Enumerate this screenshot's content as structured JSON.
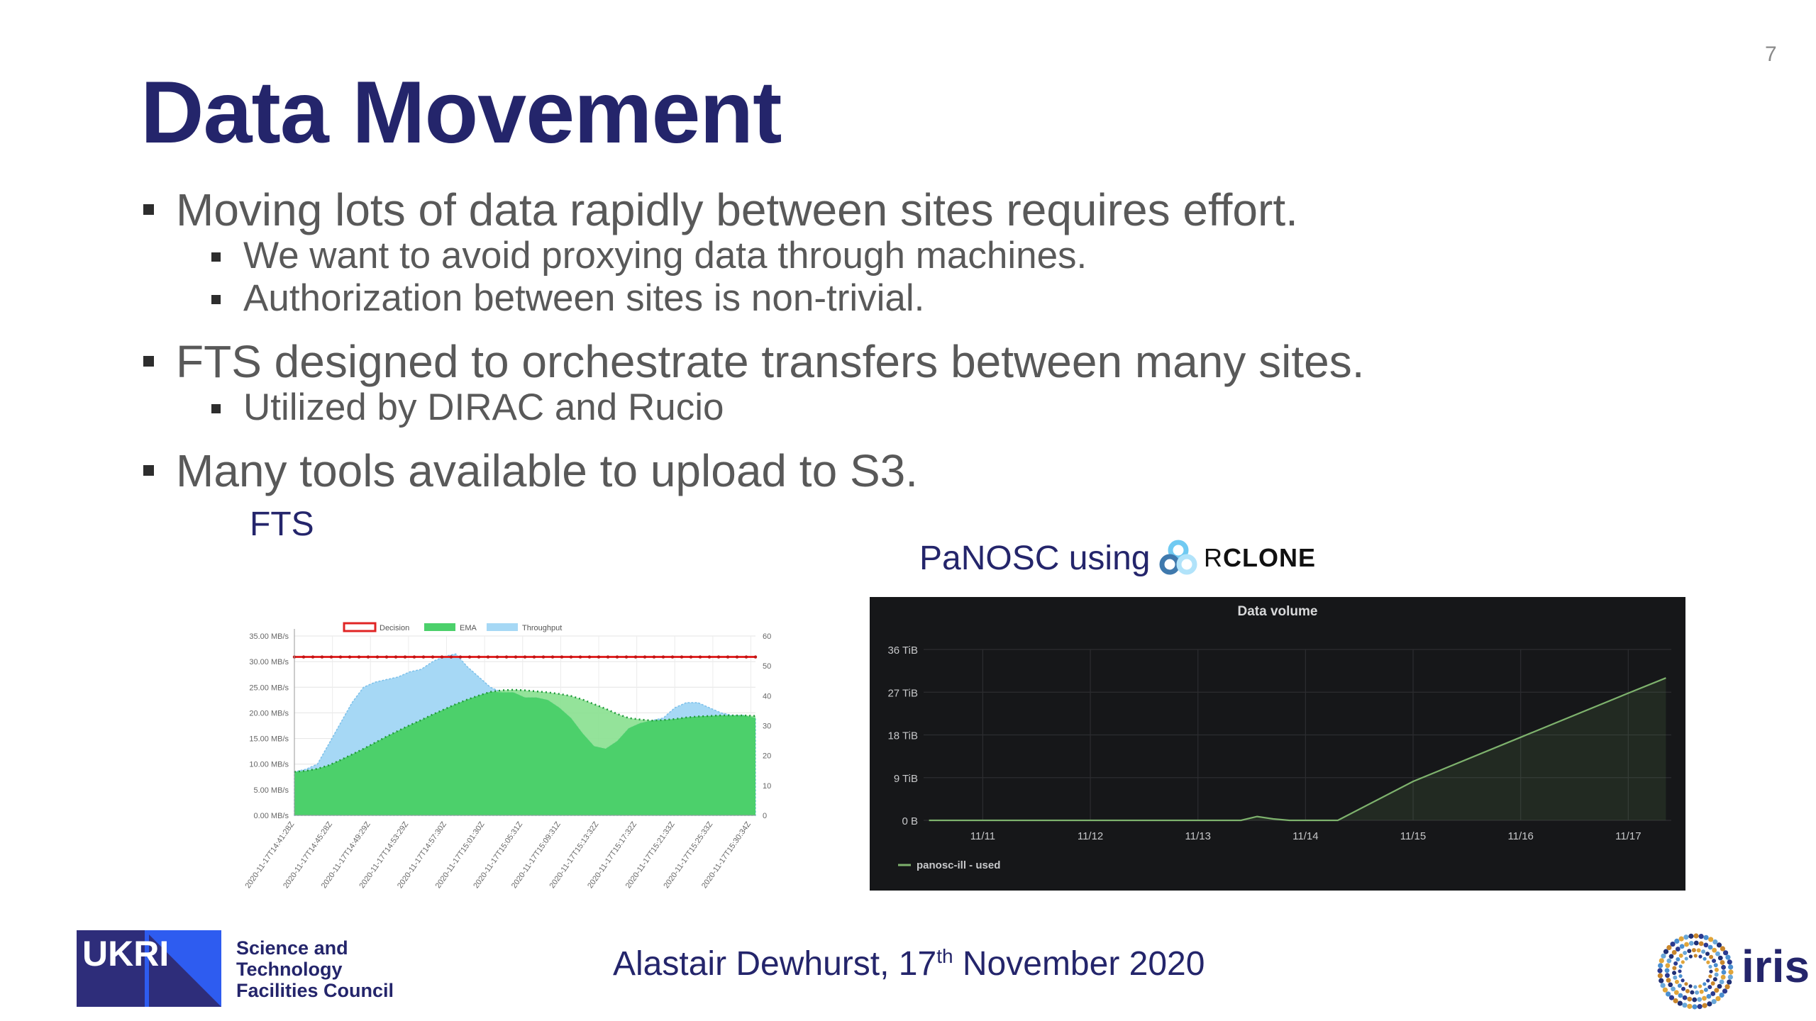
{
  "slide": {
    "page_number": "7",
    "title": "Data Movement",
    "bullets": [
      {
        "text": "Moving lots of data rapidly between sites requires effort.",
        "sub": [
          "We want to avoid proxying data through machines.",
          "Authorization between sites is non-trivial."
        ]
      },
      {
        "text": "FTS designed to orchestrate transfers between many sites.",
        "sub": [
          "Utilized by DIRAC and Rucio"
        ]
      },
      {
        "text": "Many tools available to upload to S3.",
        "sub": []
      }
    ],
    "fts_label": "FTS",
    "panosc_label": "PaNOSC using",
    "rclone_r": "R",
    "rclone_rest": "CLONE",
    "footer": {
      "author": "Alastair Dewhurst, 17",
      "sup": "th",
      "date_rest": " November 2020"
    },
    "stfc_lines": [
      "Science and",
      "Technology",
      "Facilities Council"
    ],
    "ukri_logo_text": "UKRI",
    "iris_text": "iris"
  },
  "chart_data": [
    {
      "type": "area",
      "legend": [
        "Decision",
        "EMA",
        "Throughput"
      ],
      "legend_placement": "top",
      "colors": {
        "Decision": "#e02424",
        "EMA": "#4cd06b",
        "Throughput": "#a6d8f5"
      },
      "y_left": {
        "ticks": [
          "0.00 MB/s",
          "5.00 MB/s",
          "10.00 MB/s",
          "15.00 MB/s",
          "20.00 MB/s",
          "25.00 MB/s",
          "30.00 MB/s",
          "35.00 MB/s"
        ],
        "lim": [
          0,
          35
        ]
      },
      "y_right": {
        "ticks": [
          "0",
          "10",
          "20",
          "30",
          "40",
          "50",
          "60"
        ],
        "lim": [
          0,
          60
        ]
      },
      "x_ticks": [
        "2020-11-17T14:41:28Z",
        "2020-11-17T14:45:28Z",
        "2020-11-17T14:49:29Z",
        "2020-11-17T14:53:29Z",
        "2020-11-17T14:57:30Z",
        "2020-11-17T15:01:30Z",
        "2020-11-17T15:05:31Z",
        "2020-11-17T15:09:31Z",
        "2020-11-17T15:13:32Z",
        "2020-11-17T15:17:32Z",
        "2020-11-17T15:21:33Z",
        "2020-11-17T15:25:33Z",
        "2020-11-17T15:30:34Z"
      ],
      "decision_right_axis": 53,
      "throughput_mbs": [
        8.5,
        9,
        10,
        14,
        18,
        22,
        25,
        26,
        26.5,
        27,
        28,
        28.5,
        30,
        31,
        31.5,
        29,
        27,
        25,
        24,
        24,
        23,
        23,
        22.5,
        21,
        19,
        16,
        13.5,
        13,
        14.5,
        17,
        18,
        18.5,
        19,
        21,
        22,
        22,
        21,
        20,
        19.5,
        19.5,
        19
      ],
      "ema_mbs": [
        8.5,
        8.7,
        9.1,
        9.8,
        10.8,
        11.9,
        13.0,
        14.2,
        15.4,
        16.5,
        17.6,
        18.6,
        19.7,
        20.7,
        21.7,
        22.6,
        23.4,
        24.1,
        24.4,
        24.5,
        24.4,
        24.2,
        24.0,
        23.7,
        23.3,
        22.6,
        21.7,
        20.8,
        19.8,
        19.0,
        18.7,
        18.5,
        18.6,
        18.8,
        19.1,
        19.3,
        19.4,
        19.5,
        19.5,
        19.5,
        19.4
      ]
    },
    {
      "type": "line",
      "title": "Data volume",
      "y_ticks": [
        "0 B",
        "9 TiB",
        "18 TiB",
        "27 TiB",
        "36 TiB"
      ],
      "ylim": [
        0,
        36
      ],
      "x_ticks": [
        "11/11",
        "11/12",
        "11/13",
        "11/14",
        "11/15",
        "11/16",
        "11/17"
      ],
      "series": [
        {
          "name": "panosc-ill - used",
          "x": [
            10.5,
            11.0,
            12.0,
            13.0,
            13.4,
            13.55,
            13.7,
            13.85,
            14.0,
            14.3,
            15.0,
            16.0,
            17.0,
            17.35
          ],
          "y": [
            0,
            0,
            0,
            0,
            0,
            0.8,
            0.3,
            0,
            0,
            0,
            8.2,
            17.5,
            26.8,
            30.0
          ]
        }
      ],
      "colors": {
        "line": "#7eb26d",
        "background": "#161719"
      }
    }
  ]
}
